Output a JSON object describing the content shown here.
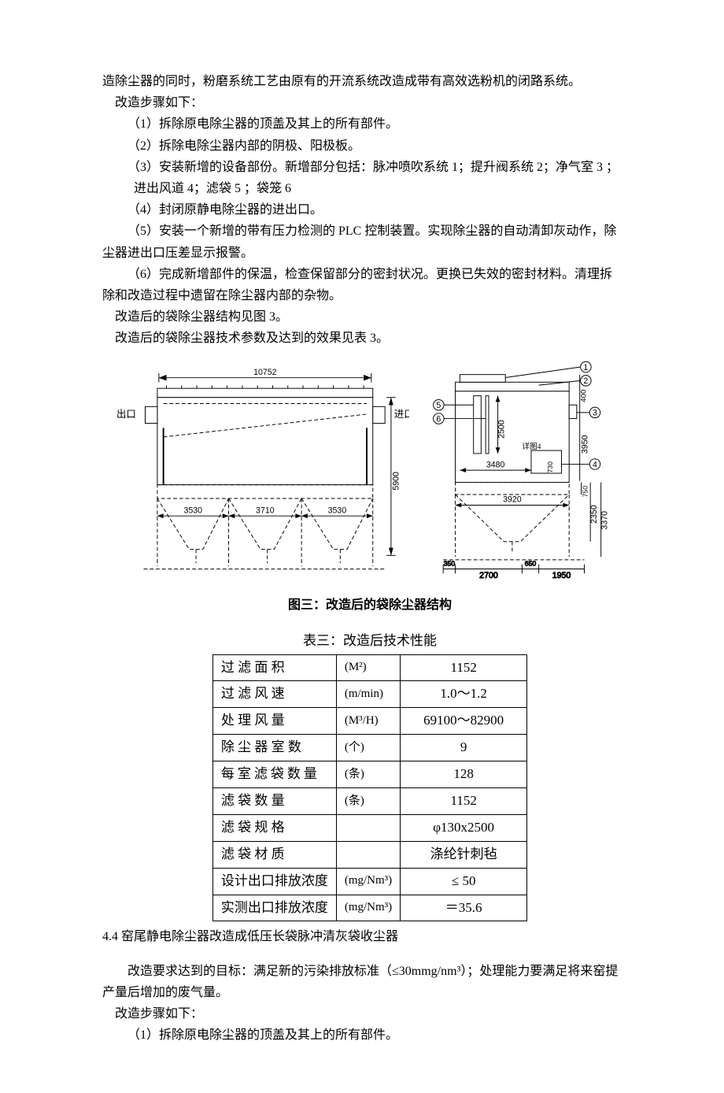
{
  "p_intro": "造除尘器的同时，粉磨系统工艺由原有的开流系统改造成带有高效选粉机的闭路系统。",
  "p_steps_head1": "改造步骤如下：",
  "step1": "（1）拆除原电除尘器的顶盖及其上的所有部件。",
  "step2": "（2）拆除电除尘器内部的阴极、阳极板。",
  "step3a": "（3）安装新增的设备部份。新增部分包括：脉冲喷吹系统 1；提升阀系统 2；净气室 3 ；",
  "step3b": "进出风道 4；滤袋 5 ；袋笼 6",
  "step4": "（4）封闭原静电除尘器的进出口。",
  "step5a": "（5）安装一个新增的带有压力检测的 PLC 控制装置。实现除尘器的自动清卸灰动作，除",
  "step5b": "尘器进出口压差显示报警。",
  "step6a": "（6）完成新增部件的保温，检查保留部分的密封状况。更换已失效的密封材料。清理拆",
  "step6b": "除和改造过程中遗留在除尘器内部的杂物。",
  "p_after1": "改造后的袋除尘器结构见图 3。",
  "p_after2": "改造后的袋除尘器技术参数及达到的效果见表 3。",
  "fig_caption": "图三：改造后的袋除尘器结构",
  "tab_caption": "表三：改造后技术性能",
  "table_rows": [
    {
      "label": "过 滤 面 积",
      "unit": "(M²)",
      "val": "1152"
    },
    {
      "label": "过 滤 风 速",
      "unit": "(m/min)",
      "val": "1.0～1.2"
    },
    {
      "label": "处 理 风 量",
      "unit": "(M³/H)",
      "val": "69100～82900"
    },
    {
      "label": "除 尘 器 室 数",
      "unit": "(个)",
      "val": "9"
    },
    {
      "label": "每室滤袋数量",
      "unit": "(条)",
      "val": "128"
    },
    {
      "label": "滤 袋 数 量",
      "unit": "(条)",
      "val": "1152"
    },
    {
      "label": "滤 袋 规 格",
      "unit": "",
      "val": "φ130x2500"
    },
    {
      "label": "滤 袋 材 质",
      "unit": "",
      "val": "涤纶针刺毡"
    },
    {
      "label": "设计出口排放浓度",
      "unit": "(mg/Nm³)",
      "val": "≤ 50"
    },
    {
      "label": "实测出口排放浓度",
      "unit": "(mg/Nm³)",
      "val": "＝35.6"
    }
  ],
  "sec44_title": "4.4 窑尾静电除尘器改造成低压长袋脉冲清灰袋收尘器",
  "sec44_p1a": "改造要求达到的目标：满足新的污染排放标准（≤30mmg/nm³）；处理能力要满足将来窑提",
  "sec44_p1b": "产量后增加的废气量。",
  "sec44_steps_head": "改造步骤如下：",
  "sec44_step1": "（1）拆除原电除尘器的顶盖及其上的所有部件。",
  "diagram_left": {
    "overall_width_label": "10752",
    "outlet_label": "出口",
    "inlet_label": "进口",
    "height_label": "5900",
    "hopper_dims": [
      "3530",
      "3710",
      "3530"
    ],
    "stroke": "#000000",
    "dash": "4 3"
  },
  "diagram_right": {
    "callouts": [
      "1",
      "2",
      "3",
      "4",
      "5",
      "6"
    ],
    "dim_top": "400",
    "dim_filter": "2500",
    "dim_upper": "3950",
    "dim_mid_w": "3480",
    "dim_slot": "730",
    "note4": "详图4",
    "dim_h1": "750",
    "dim_h2": "2350",
    "dim_h3": "3370",
    "dim_hopper_w": "3920",
    "dim_b1": "350",
    "dim_b2": "2700",
    "dim_b3": "650",
    "dim_b4": "1950",
    "stroke": "#000000",
    "dash": "4 3"
  }
}
